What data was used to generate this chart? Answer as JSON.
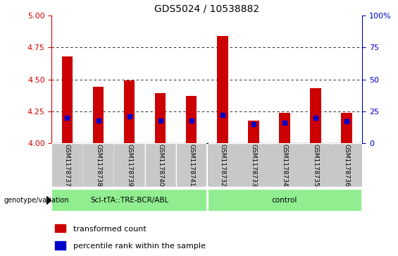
{
  "title": "GDS5024 / 10538882",
  "samples": [
    "GSM1178737",
    "GSM1178738",
    "GSM1178739",
    "GSM1178740",
    "GSM1178741",
    "GSM1178732",
    "GSM1178733",
    "GSM1178734",
    "GSM1178735",
    "GSM1178736"
  ],
  "transformed_count": [
    4.68,
    4.44,
    4.49,
    4.39,
    4.37,
    4.84,
    4.18,
    4.24,
    4.43,
    4.24
  ],
  "percentile_rank": [
    20,
    18,
    21,
    18,
    18,
    22,
    15,
    16,
    20,
    17
  ],
  "ylim": [
    4.0,
    5.0
  ],
  "y_left_ticks": [
    4.0,
    4.25,
    4.5,
    4.75,
    5.0
  ],
  "y_right_ticks": [
    0,
    25,
    50,
    75,
    100
  ],
  "group1_label": "Scl-tTA::TRE-BCR/ABL",
  "group2_label": "control",
  "group1_count": 5,
  "group2_count": 5,
  "bar_color": "#cc0000",
  "blue_color": "#0000cc",
  "background_gray": "#c8c8c8",
  "group_green": "#90ee90",
  "left_axis_color": "#cc0000",
  "right_axis_color": "#0000cc",
  "legend_entries": [
    "transformed count",
    "percentile rank within the sample"
  ],
  "bar_width": 0.35
}
